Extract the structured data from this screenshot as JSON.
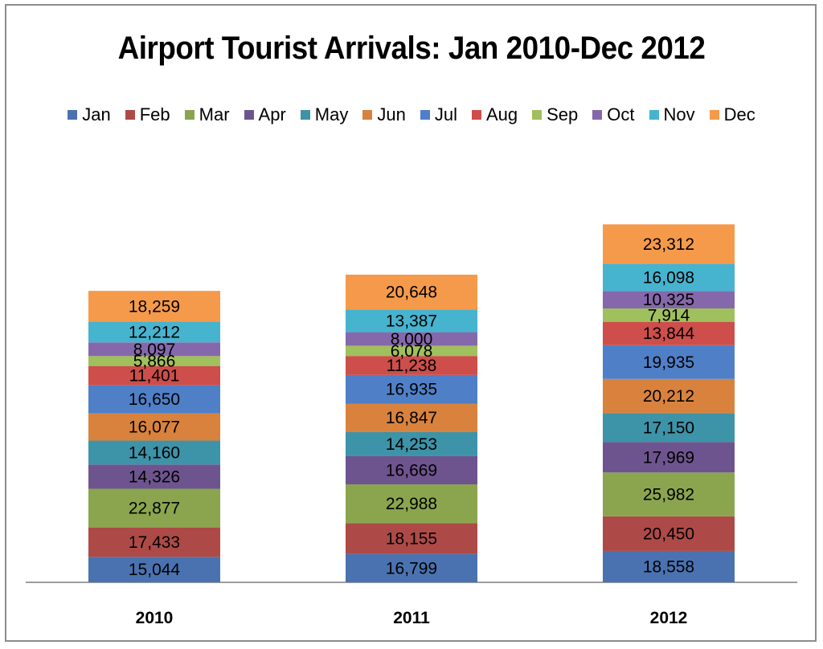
{
  "chart_data": {
    "type": "bar",
    "stacked": true,
    "title": "Airport Tourist Arrivals: Jan 2010-Dec 2012",
    "categories": [
      "2010",
      "2011",
      "2012"
    ],
    "series": [
      {
        "name": "Jan",
        "color": "#4a72b0",
        "values": [
          15044,
          16799,
          18558
        ],
        "labels": [
          "15,044",
          "16,799",
          "18,558"
        ]
      },
      {
        "name": "Feb",
        "color": "#ad4a47",
        "values": [
          17433,
          18155,
          20450
        ],
        "labels": [
          "17,433",
          "18,155",
          "20,450"
        ]
      },
      {
        "name": "Mar",
        "color": "#8aa54e",
        "values": [
          22877,
          22988,
          25982
        ],
        "labels": [
          "22,877",
          "22,988",
          "25,982"
        ]
      },
      {
        "name": "Apr",
        "color": "#6e548e",
        "values": [
          14326,
          16669,
          17969
        ],
        "labels": [
          "14,326",
          "16,669",
          "17,969"
        ]
      },
      {
        "name": "May",
        "color": "#3d93a8",
        "values": [
          14160,
          14253,
          17150
        ],
        "labels": [
          "14,160",
          "14,253",
          "17,150"
        ]
      },
      {
        "name": "Jun",
        "color": "#d8823d",
        "values": [
          16077,
          16847,
          20212
        ],
        "labels": [
          "16,077",
          "16,847",
          "20,212"
        ]
      },
      {
        "name": "Jul",
        "color": "#4f7fc7",
        "values": [
          16650,
          16935,
          19935
        ],
        "labels": [
          "16,650",
          "16,935",
          "19,935"
        ]
      },
      {
        "name": "Aug",
        "color": "#cd4e4b",
        "values": [
          11401,
          11238,
          13844
        ],
        "labels": [
          "11,401",
          "11,238",
          "13,844"
        ]
      },
      {
        "name": "Sep",
        "color": "#9fc05c",
        "values": [
          5866,
          6078,
          7914
        ],
        "labels": [
          "5,866",
          "6,078",
          "7,914"
        ]
      },
      {
        "name": "Oct",
        "color": "#8568ab",
        "values": [
          8097,
          8000,
          10325
        ],
        "labels": [
          "8,097",
          "8,000",
          "10,325"
        ]
      },
      {
        "name": "Nov",
        "color": "#46b3cf",
        "values": [
          12212,
          13387,
          16098
        ],
        "labels": [
          "12,212",
          "13,387",
          "16,098"
        ]
      },
      {
        "name": "Dec",
        "color": "#f59a4a",
        "values": [
          18259,
          20648,
          23312
        ],
        "labels": [
          "18,259",
          "20,648",
          "23,312"
        ]
      }
    ],
    "grid": false,
    "legend_position": "top"
  }
}
